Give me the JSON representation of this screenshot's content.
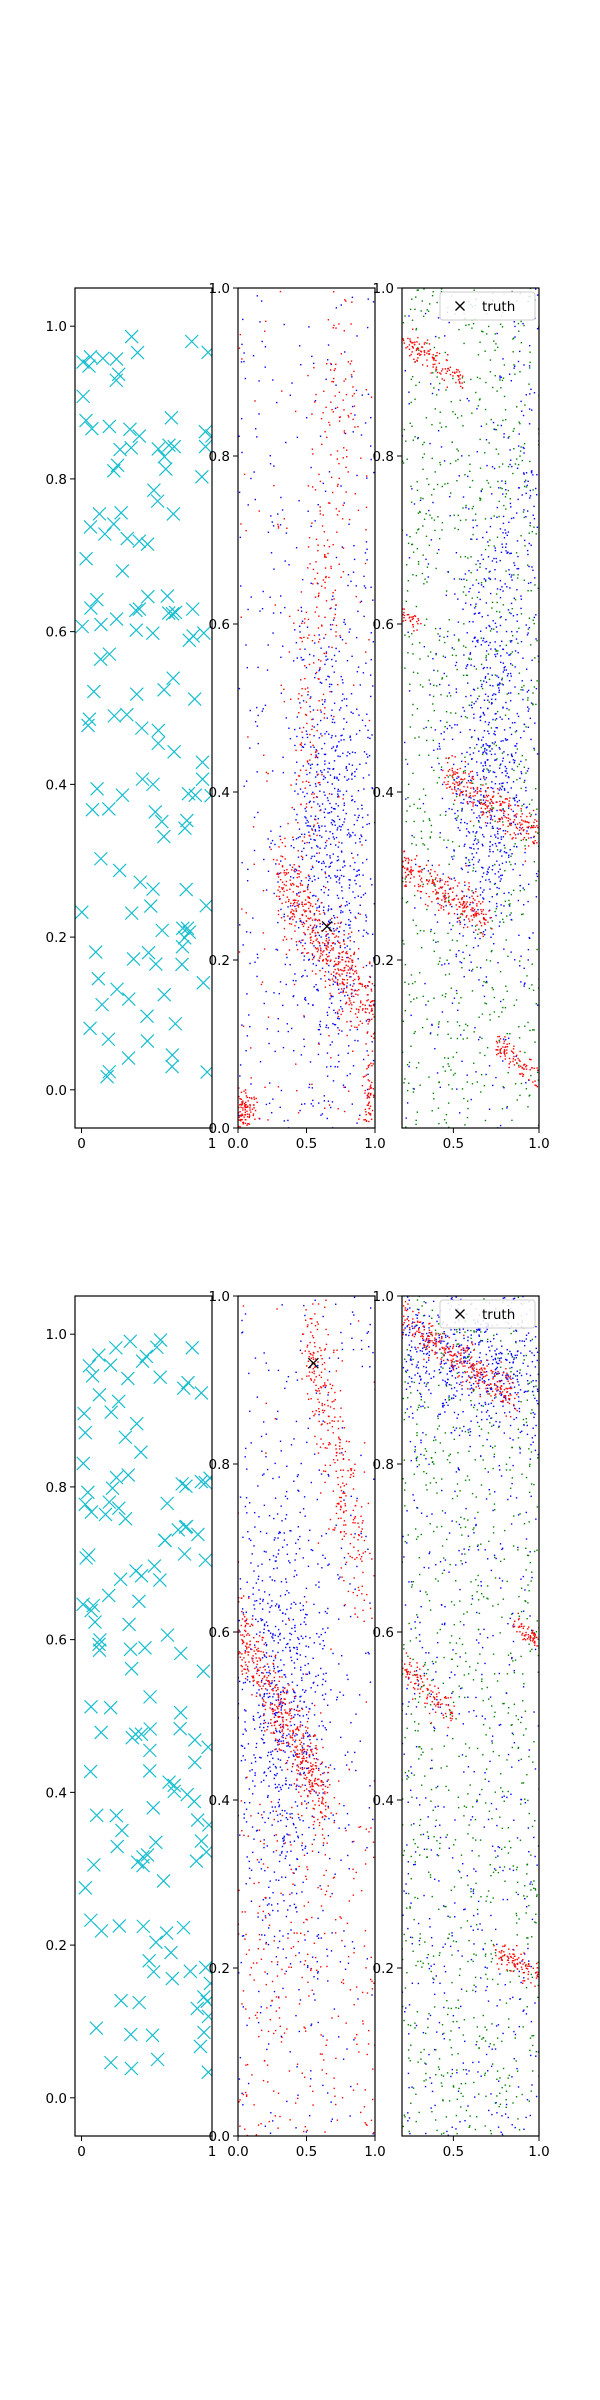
{
  "figure": {
    "rows": [
      {
        "panels": [
          {
            "kind": "samples",
            "xlim": [
              -0.05,
              1.0
            ],
            "ylim": [
              -0.05,
              1.05
            ],
            "xticks": [
              0,
              1
            ],
            "xtick_labels": [
              "0",
              "1"
            ],
            "yticks": [
              0.0,
              0.2,
              0.4,
              0.6,
              0.8,
              1.0
            ],
            "ytick_labels": [
              "0.0",
              "0.2",
              "0.4",
              "0.6",
              "0.8",
              "1.0"
            ],
            "marker": "x",
            "color": "#17becf"
          },
          {
            "kind": "density",
            "xlim": [
              0,
              1
            ],
            "ylim": [
              0,
              1
            ],
            "xticks": [
              0.0,
              0.5,
              1.0
            ],
            "xtick_labels": [
              "0.0",
              "0.5",
              "1.0"
            ],
            "yticks": [
              0.0,
              0.2,
              0.4,
              0.6,
              0.8,
              1.0
            ],
            "ytick_labels": [
              "0.0",
              "0.2",
              "0.4",
              "0.6",
              "0.8",
              "1.0"
            ],
            "truth": [
              0.65,
              0.24
            ]
          },
          {
            "kind": "density3",
            "xlim": [
              0.2,
              1.0
            ],
            "ylim": [
              0,
              1
            ],
            "xticks": [
              0.5,
              1.0
            ],
            "xtick_labels": [
              "0.5",
              "1.0"
            ],
            "yticks": [
              0.2,
              0.4,
              0.6,
              0.8,
              1.0
            ],
            "ytick_labels": [
              "0.2",
              "0.4",
              "0.6",
              "0.8",
              "1.0"
            ],
            "legend": {
              "label": "truth",
              "position": "upper-right"
            }
          }
        ]
      },
      {
        "panels": [
          {
            "kind": "samples",
            "xlim": [
              -0.05,
              1.0
            ],
            "ylim": [
              -0.05,
              1.05
            ],
            "xticks": [
              0,
              1
            ],
            "xtick_labels": [
              "0",
              "1"
            ],
            "yticks": [
              0.0,
              0.2,
              0.4,
              0.6,
              0.8,
              1.0
            ],
            "ytick_labels": [
              "0.0",
              "0.2",
              "0.4",
              "0.6",
              "0.8",
              "1.0"
            ],
            "marker": "x",
            "color": "#17becf"
          },
          {
            "kind": "density",
            "xlim": [
              0,
              1
            ],
            "ylim": [
              0,
              1
            ],
            "xticks": [
              0.0,
              0.5,
              1.0
            ],
            "xtick_labels": [
              "0.0",
              "0.5",
              "1.0"
            ],
            "yticks": [
              0.0,
              0.2,
              0.4,
              0.6,
              0.8,
              1.0
            ],
            "ytick_labels": [
              "0.0",
              "0.2",
              "0.4",
              "0.6",
              "0.8",
              "1.0"
            ],
            "truth": [
              0.55,
              0.92
            ]
          },
          {
            "kind": "density3",
            "xlim": [
              0.2,
              1.0
            ],
            "ylim": [
              0,
              1
            ],
            "xticks": [
              0.5,
              1.0
            ],
            "xtick_labels": [
              "0.5",
              "1.0"
            ],
            "yticks": [
              0.2,
              0.4,
              0.6,
              0.8,
              1.0
            ],
            "ytick_labels": [
              "0.2",
              "0.4",
              "0.6",
              "0.8",
              "1.0"
            ],
            "legend": {
              "label": "truth",
              "position": "upper-right"
            }
          }
        ]
      }
    ]
  },
  "chart_data": [
    {
      "type": "scatter",
      "title": "",
      "xlim": [
        -0.05,
        1.0
      ],
      "ylim": [
        -0.05,
        1.05
      ],
      "series": [
        {
          "marker": "x",
          "color": "#17becf",
          "n_points": 130,
          "distribution": "uniform on [0,1]x[0,1]"
        }
      ],
      "grid": false
    },
    {
      "type": "scatter",
      "xlim": [
        0,
        1
      ],
      "ylim": [
        0,
        1
      ],
      "series": [
        {
          "color": "#ff0000",
          "description": "dense diagonal band from (0.3,0.30) to (1.0,0.12); corner clusters near (0.05,0.02) and (0.95,0.03); sparse ridge near x=0.5-0.75, y=0.35-1.0"
        },
        {
          "color": "#0000ff",
          "description": "diffuse cloud concentrated near (0.7,0.33)"
        },
        {
          "marker": "x",
          "color": "#000000",
          "label": "truth",
          "points": [
            [
              0.65,
              0.24
            ]
          ]
        }
      ]
    },
    {
      "type": "scatter",
      "xlim": [
        0.2,
        1.0
      ],
      "ylim": [
        0,
        1
      ],
      "series": [
        {
          "color": "#ff0000",
          "description": "diagonal bands: (0.2,0.31)-(0.7,0.25), (0.45,0.42)-(1.0,0.35), (0.2,0.94)-(0.55,0.89), (0.75,0.10)-(1.0,0.06)"
        },
        {
          "color": "#0000ff",
          "description": "cloud centered near (0.7,0.4), spreading upward-right"
        },
        {
          "color": "#008000",
          "description": "broad uniform background"
        }
      ],
      "legend": {
        "entries": [
          "truth"
        ],
        "placement": "top-right"
      }
    },
    {
      "type": "scatter",
      "xlim": [
        -0.05,
        1.0
      ],
      "ylim": [
        -0.05,
        1.05
      ],
      "series": [
        {
          "marker": "x",
          "color": "#17becf",
          "n_points": 140,
          "distribution": "uniform on [0,1]x[0,1]"
        }
      ],
      "grid": false
    },
    {
      "type": "scatter",
      "xlim": [
        0,
        1
      ],
      "ylim": [
        0,
        1
      ],
      "series": [
        {
          "color": "#ff0000",
          "description": "diagonal band from (0.0,0.60) to (0.65,0.40); ridge from (0.5,0.96) to (0.9,0.68); sparse lower region"
        },
        {
          "color": "#0000ff",
          "description": "cloud concentrated near (0.3,0.5)"
        },
        {
          "marker": "x",
          "color": "#000000",
          "label": "truth",
          "points": [
            [
              0.55,
              0.92
            ]
          ]
        }
      ]
    },
    {
      "type": "scatter",
      "xlim": [
        0.2,
        1.0
      ],
      "ylim": [
        0,
        1
      ],
      "series": [
        {
          "color": "#ff0000",
          "description": "diagonal bands: (0.2,0.97)-(0.85,0.88), (0.2,0.56)-(0.5,0.50), (0.75,0.22)-(1.0,0.19), (0.85,0.61)-(1.0,0.59)"
        },
        {
          "color": "#0000ff",
          "description": "dense near top (y>0.85), diffuse elsewhere"
        },
        {
          "color": "#008000",
          "description": "broad uniform background"
        }
      ],
      "legend": {
        "entries": [
          "truth"
        ],
        "placement": "top-right"
      }
    }
  ]
}
